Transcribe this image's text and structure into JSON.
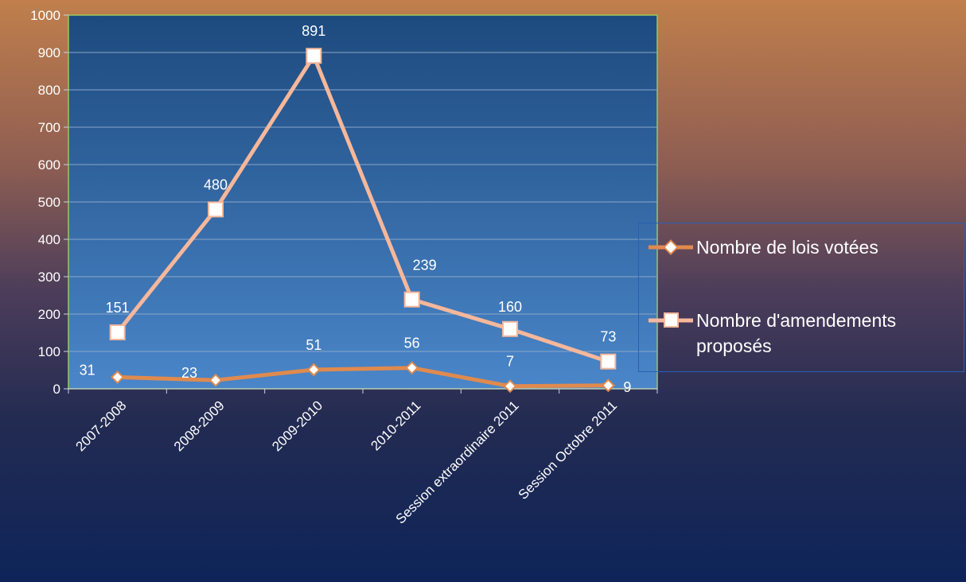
{
  "chart_data": {
    "type": "line",
    "title": "",
    "xlabel": "",
    "ylabel": "",
    "categories": [
      "2007-2008",
      "2008-2009",
      "2009-2010",
      "2010-2011",
      "Session extraordinaire 2011",
      "Session Octobre 2011"
    ],
    "ylim": [
      0,
      1000
    ],
    "yticks": [
      0,
      100,
      200,
      300,
      400,
      500,
      600,
      700,
      800,
      900,
      1000
    ],
    "grid": true,
    "legend_position": "right",
    "data_labels": true,
    "series": [
      {
        "name": "Nombre de lois votées",
        "values": [
          31,
          23,
          51,
          56,
          7,
          9
        ],
        "color": "#e08a4e",
        "marker": "diamond"
      },
      {
        "name": "Nombre d'amendements proposés",
        "values": [
          151,
          480,
          891,
          239,
          160,
          73
        ],
        "color": "#f6b79a",
        "marker": "square"
      }
    ]
  },
  "colors": {
    "plot_top": "#1d4a7e",
    "plot_bottom": "#4a86c9",
    "plot_border": "#9bc85a",
    "gridline": "#8aa6c8",
    "text": "#ffffff"
  }
}
